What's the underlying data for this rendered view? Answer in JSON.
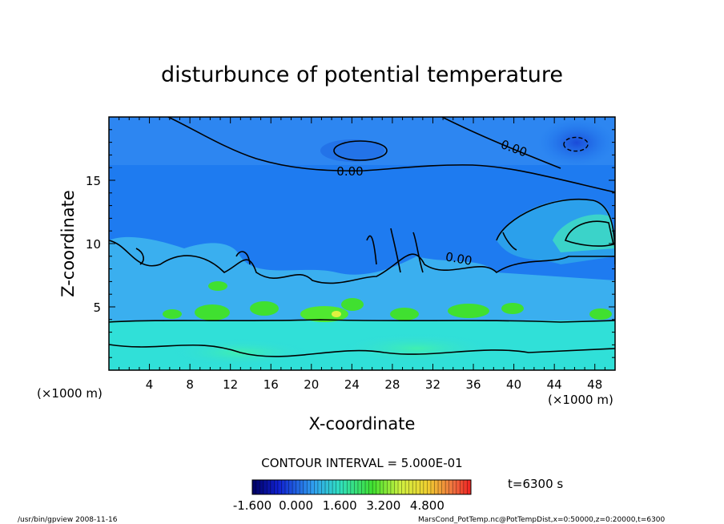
{
  "chart_data": {
    "type": "heatmap",
    "title": "disturbunce of potential temperature",
    "xlabel": "X-coordinate",
    "ylabel": "Z-coordinate",
    "x_unit_note_left": "(×1000 m)",
    "x_unit_note_right": "(×1000 m)",
    "xlim": [
      0,
      50
    ],
    "ylim": [
      0,
      20
    ],
    "x_ticks": [
      4,
      8,
      12,
      16,
      20,
      24,
      28,
      32,
      36,
      40,
      44,
      48
    ],
    "y_ticks": [
      5,
      10,
      15
    ],
    "contour_labels": [
      {
        "text": "0.00",
        "x": 23.8,
        "z": 15.5
      },
      {
        "text": "0.00",
        "x": 39.5,
        "z": 17.5
      },
      {
        "text": "0.00",
        "x": 34.0,
        "z": 8.7
      }
    ],
    "contour_interval_text": "CONTOUR INTERVAL = 5.000E-01",
    "time_text": "t=6300 s",
    "colorbar": {
      "min": -1.6,
      "max": 6.4,
      "tick_labels": [
        "-1.600",
        "0.000",
        "1.600",
        "3.200",
        "4.800"
      ]
    },
    "footer_left": "/usr/bin/gpview   2008-11-16",
    "footer_right": "MarsCond_PotTemp.nc@PotTempDist,x=0:50000,z=0:20000,t=6300"
  },
  "colors": {
    "upper_blue": "#1e7bf0",
    "lower_cyan": "#30e0d8",
    "green": "#30e030",
    "frame": "#000000"
  }
}
